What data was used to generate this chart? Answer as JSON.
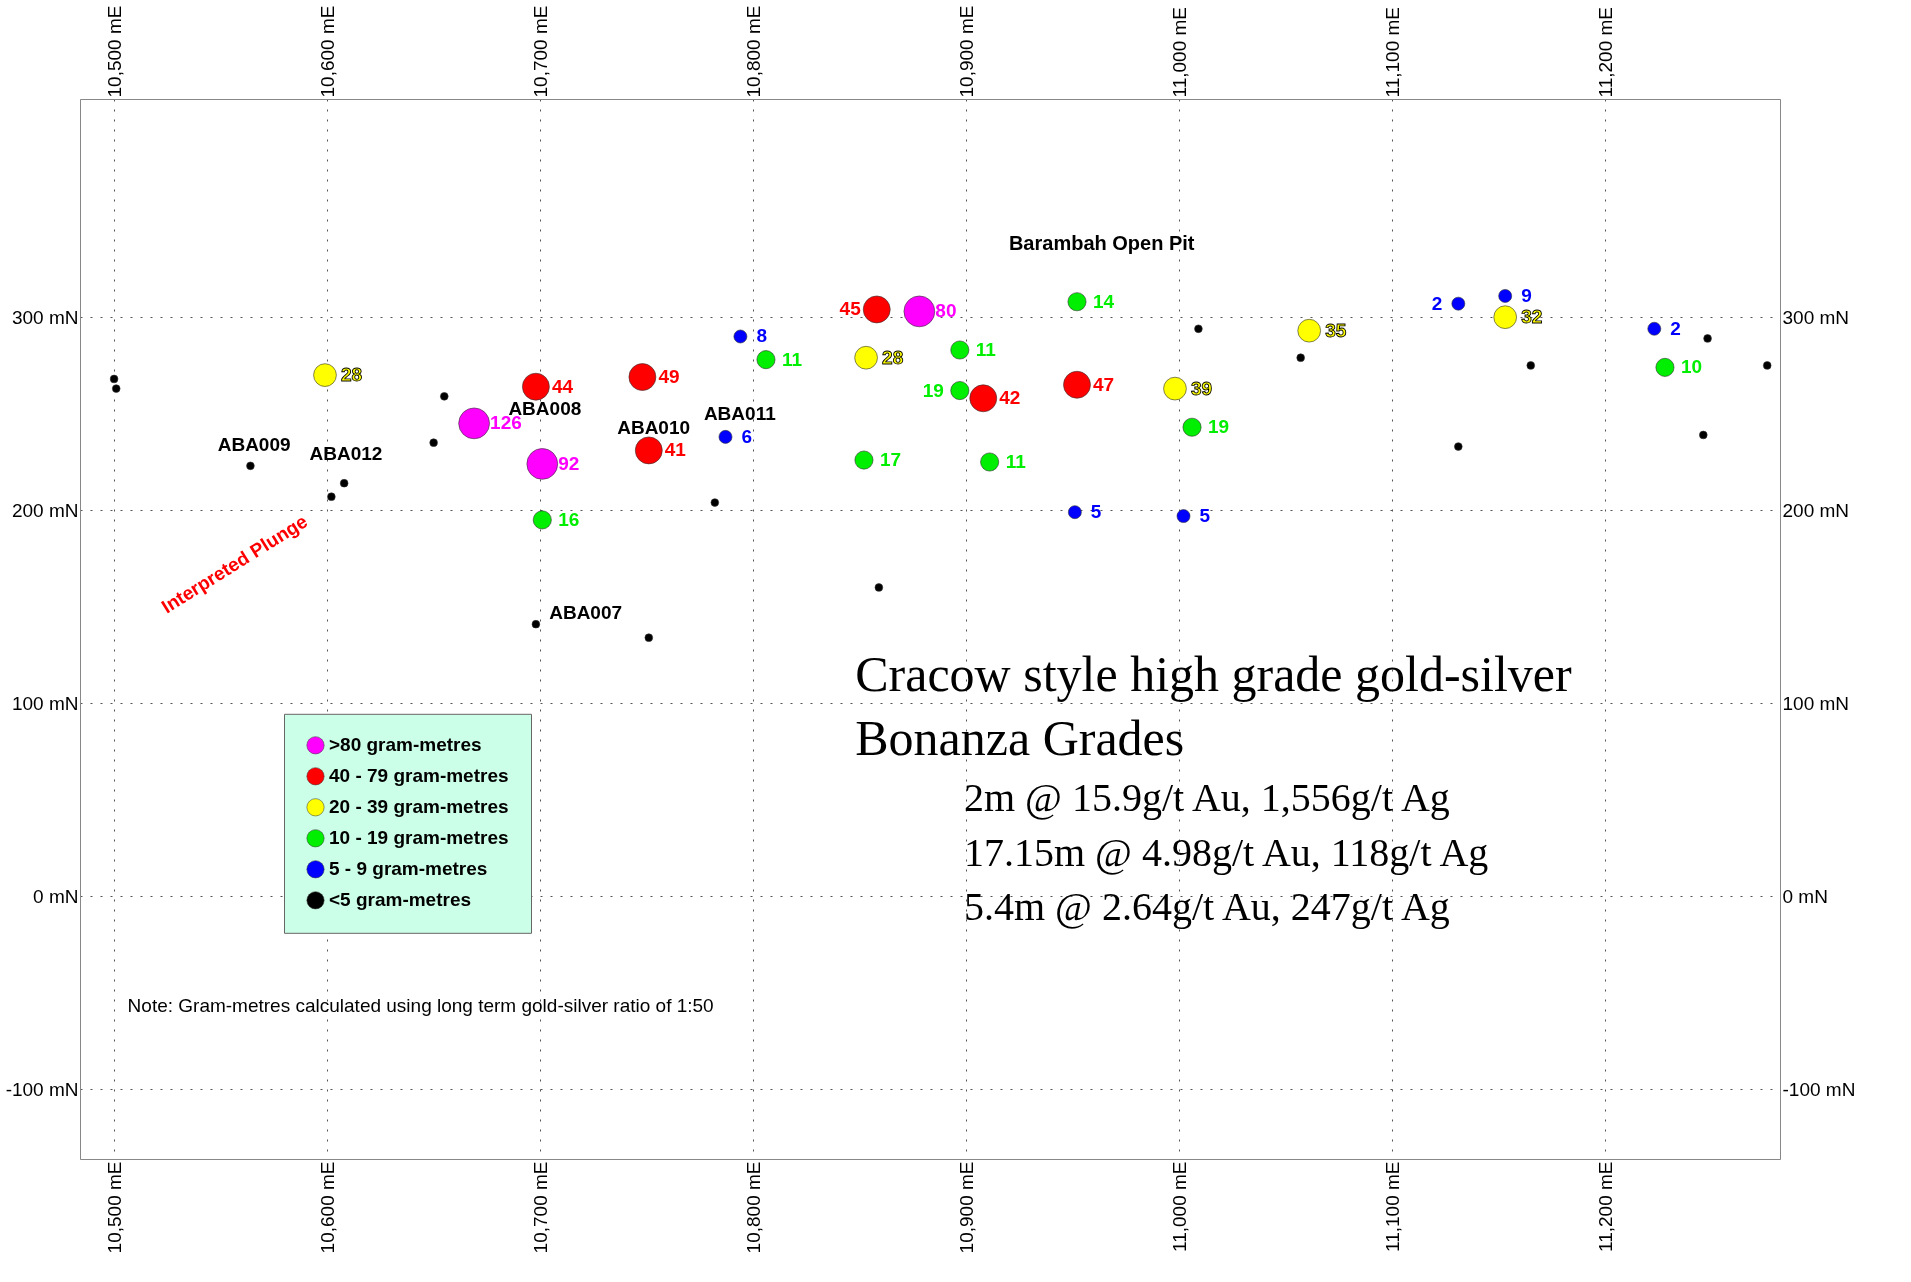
{
  "chart_data": {
    "type": "scatter",
    "annotations": [
      "Barambah Open Pit",
      "Interpreted Plunge",
      "Cracow style high grade gold-silver",
      "Bonanza Grades",
      "2m @ 15.9g/t Au, 1,556g/t Ag",
      "17.15m @ 4.98g/t Au, 118g/t Ag",
      "5.4m @ 2.64g/t Au, 247g/t Ag",
      "Note:  Gram-metres calculated using long term gold-silver ratio of 1:50",
      "ABA009",
      "ABA012",
      "ABA008",
      "ABA010",
      "ABA011",
      "ABA007",
      {
        "text": "126",
        "x": 10669,
        "y": 245
      },
      {
        "text": "92",
        "x": 10701,
        "y": 224
      },
      {
        "text": "80",
        "x": 10878,
        "y": 303
      },
      {
        "text": "45",
        "x": 10858,
        "y": 304
      },
      {
        "text": "44",
        "x": 10698,
        "y": 264
      },
      {
        "text": "49",
        "x": 10748,
        "y": 269
      },
      {
        "text": "41",
        "x": 10751,
        "y": 231
      },
      {
        "text": "42",
        "x": 10908,
        "y": 258
      },
      {
        "text": "47",
        "x": 10952,
        "y": 265
      },
      {
        "text": "28",
        "x": 10599,
        "y": 270
      },
      {
        "text": "28",
        "x": 10853,
        "y": 279
      },
      {
        "text": "35",
        "x": 11061,
        "y": 293
      },
      {
        "text": "39",
        "x": 10998,
        "y": 263
      },
      {
        "text": "32",
        "x": 11153,
        "y": 300
      },
      {
        "text": "14",
        "x": 10952,
        "y": 308
      },
      {
        "text": "11",
        "x": 10806,
        "y": 278
      },
      {
        "text": "11",
        "x": 10897,
        "y": 283
      },
      {
        "text": "19",
        "x": 10897,
        "y": 262
      },
      {
        "text": "19",
        "x": 11006,
        "y": 243
      },
      {
        "text": "17",
        "x": 10852,
        "y": 226
      },
      {
        "text": "11",
        "x": 10911,
        "y": 225
      },
      {
        "text": "16",
        "x": 10701,
        "y": 195
      },
      {
        "text": "10",
        "x": 11228,
        "y": 274
      },
      {
        "text": "8",
        "x": 10794,
        "y": 290
      },
      {
        "text": "6",
        "x": 10787,
        "y": 238
      },
      {
        "text": "5",
        "x": 10951,
        "y": 199
      },
      {
        "text": "5",
        "x": 11002,
        "y": 197
      },
      {
        "text": "2",
        "x": 11131,
        "y": 307
      },
      {
        "text": "9",
        "x": 11153,
        "y": 311
      },
      {
        "text": "2",
        "x": 11223,
        "y": 294
      }
    ],
    "series": [
      {
        "name": ">80 gram-metres",
        "color": "#ff00ff",
        "x": [
          10669,
          10701,
          10878
        ],
        "values": [
          245,
          224,
          303
        ]
      },
      {
        "name": "40 - 79 gram-metres",
        "color": "#ff0000",
        "x": [
          10858,
          10698,
          10748,
          10751,
          10908,
          10952
        ],
        "values": [
          304,
          264,
          269,
          231,
          258,
          265
        ]
      },
      {
        "name": "20 - 39 gram-metres",
        "color": "#ffff00",
        "x": [
          10599,
          10853,
          11061,
          10998,
          11153
        ],
        "values": [
          270,
          279,
          293,
          263,
          300
        ]
      },
      {
        "name": "10 - 19 gram-metres",
        "color": "#00ee00",
        "x": [
          10952,
          10806,
          10897,
          10897,
          11006,
          10852,
          10911,
          10701,
          11228
        ],
        "values": [
          308,
          278,
          283,
          262,
          243,
          226,
          225,
          195,
          274
        ]
      },
      {
        "name": "5 - 9 gram-metres",
        "color": "#0000ff",
        "x": [
          10794,
          10787,
          10951,
          11002,
          11131,
          11153,
          11223
        ],
        "values": [
          290,
          238,
          199,
          197,
          307,
          311,
          294
        ]
      },
      {
        "name": "<5 gram-metres",
        "color": "#000000",
        "x": [
          10500,
          10501,
          10564,
          10608,
          10602,
          10655,
          10650,
          10698,
          10751,
          10782,
          10859,
          11009,
          11057,
          11131,
          11165,
          11248,
          11246,
          11276
        ],
        "values": [
          268,
          263,
          223,
          214,
          207,
          259,
          235,
          141,
          134,
          204,
          160,
          294,
          279,
          233,
          275,
          289,
          239,
          275
        ]
      }
    ],
    "xlim": [
      10484,
      11282
    ],
    "ylim": [
      -136,
      413
    ],
    "xticks": [
      {
        "value": 10500,
        "label": "10,500 mE"
      },
      {
        "value": 10600,
        "label": "10,600 mE"
      },
      {
        "value": 10700,
        "label": "10,700 mE"
      },
      {
        "value": 10800,
        "label": "10,800 mE"
      },
      {
        "value": 10900,
        "label": "10,900 mE"
      },
      {
        "value": 11000,
        "label": "11,000 mE"
      },
      {
        "value": 11100,
        "label": "11,100 mE"
      },
      {
        "value": 11200,
        "label": "11,200 mE"
      }
    ],
    "x2lim": [
      10484,
      11282
    ],
    "x2ticks": [
      {
        "value": 10500,
        "label": "10,500 mE"
      },
      {
        "value": 10600,
        "label": "10,600 mE"
      },
      {
        "value": 10700,
        "label": "10,700 mE"
      },
      {
        "value": 10800,
        "label": "10,800 mE"
      },
      {
        "value": 10900,
        "label": "10,900 mE"
      },
      {
        "value": 11000,
        "label": "11,000 mE"
      },
      {
        "value": 11100,
        "label": "11,100 mE"
      },
      {
        "value": 11200,
        "label": "11,200 mE"
      }
    ],
    "yticks": [
      {
        "value": -100,
        "label": "-100 mN"
      },
      {
        "value": 0,
        "label": "0 mN"
      },
      {
        "value": 100,
        "label": "100 mN"
      },
      {
        "value": 200,
        "label": "200 mN"
      },
      {
        "value": 300,
        "label": "300 mN"
      }
    ],
    "y2lim": [
      -136,
      413
    ],
    "y2ticks": [
      {
        "value": -100,
        "label": "-100 mN"
      },
      {
        "value": 0,
        "label": "0 mN"
      },
      {
        "value": 100,
        "label": "100 mN"
      },
      {
        "value": 200,
        "label": "200 mN"
      },
      {
        "value": 300,
        "label": "300 mN"
      }
    ],
    "grid": true,
    "legend": "bottom left",
    "marker": "circle"
  }
}
